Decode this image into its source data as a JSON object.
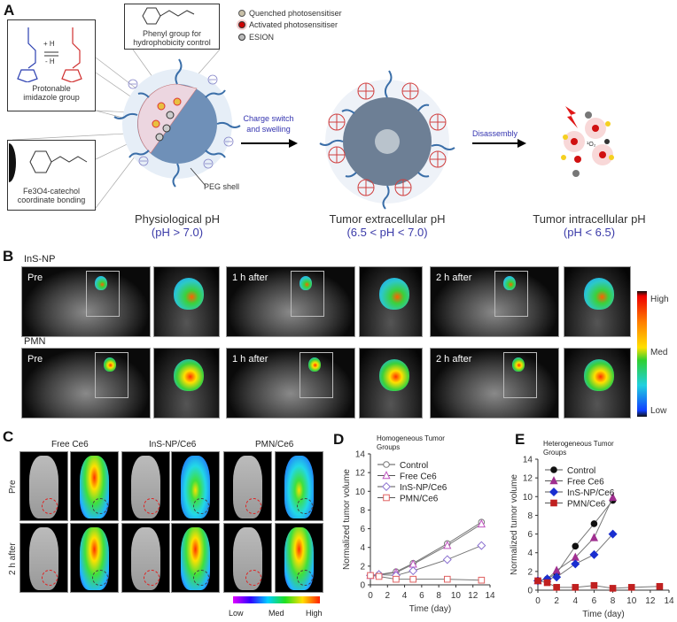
{
  "panel_a": {
    "label": "A",
    "imidazole_box": {
      "plus_h": "+ H",
      "minus_h": "- H",
      "caption": "Protonable imidazole group"
    },
    "phenyl_box": {
      "caption": "Phenyl group for hydrophobicity control"
    },
    "catechol_box": {
      "caption": "Fe3O4-catechol coordinate bonding"
    },
    "legend": [
      "Quenched photosensitiser",
      "Activated photosensitiser",
      "ESION"
    ],
    "peg_label": "PEG shell",
    "arrow1_label": "Charge switch and swelling",
    "arrow2_label": "Disassembly",
    "stages": [
      {
        "title": "Physiological pH",
        "ph": "(pH > 7.0)"
      },
      {
        "title": "Tumor extracellular pH",
        "ph": "(6.5 < pH < 7.0)"
      },
      {
        "title": "Tumor intracellular pH",
        "ph": "(pH < 6.5)"
      }
    ],
    "singlet_oxygen": "¹O₂"
  },
  "panel_b": {
    "label": "B",
    "rows": [
      {
        "name": "InS-NP",
        "timepoints": [
          "Pre",
          "1 h after",
          "2 h after"
        ]
      },
      {
        "name": "PMN",
        "timepoints": [
          "Pre",
          "1 h after",
          "2 h after"
        ]
      }
    ],
    "colorbar": {
      "high": "High",
      "med": "Med",
      "low": "Low"
    }
  },
  "panel_c": {
    "label": "C",
    "columns": [
      "Free Ce6",
      "InS-NP/Ce6",
      "PMN/Ce6"
    ],
    "rows": [
      "Pre",
      "2 h after"
    ],
    "colorbar": {
      "low": "Low",
      "med": "Med",
      "high": "High"
    }
  },
  "chart_data": [
    {
      "label": "D",
      "type": "line",
      "title": "Homogeneous Tumor Groups",
      "xlabel": "Time (day)",
      "ylabel": "Normalized tumor volume",
      "xlim": [
        0,
        14
      ],
      "ylim": [
        0,
        14
      ],
      "xticks": [
        0,
        2,
        4,
        6,
        8,
        10,
        12,
        14
      ],
      "yticks": [
        0,
        2,
        4,
        6,
        8,
        10,
        12,
        14
      ],
      "legend": "top-left",
      "series": [
        {
          "name": "Control",
          "marker": "circle-open",
          "color": "#777777",
          "x": [
            0,
            1,
            3,
            5,
            9,
            13
          ],
          "y": [
            1.0,
            1.1,
            1.4,
            2.3,
            4.4,
            6.7
          ]
        },
        {
          "name": "Free Ce6",
          "marker": "triangle-open",
          "color": "#c050c0",
          "x": [
            0,
            1,
            3,
            5,
            9,
            13
          ],
          "y": [
            1.0,
            1.1,
            1.3,
            2.2,
            4.2,
            6.5
          ]
        },
        {
          "name": "InS-NP/Ce6",
          "marker": "diamond-open",
          "color": "#8a70d0",
          "x": [
            0,
            1,
            3,
            5,
            9,
            13
          ],
          "y": [
            1.0,
            1.1,
            1.0,
            1.5,
            2.7,
            4.2
          ]
        },
        {
          "name": "PMN/Ce6",
          "marker": "square-open",
          "color": "#e06060",
          "x": [
            0,
            1,
            3,
            5,
            9,
            13
          ],
          "y": [
            1.0,
            0.9,
            0.6,
            0.6,
            0.6,
            0.5
          ]
        }
      ]
    },
    {
      "label": "E",
      "type": "line",
      "title": "Heterogeneous Tumor Groups",
      "xlabel": "Time (day)",
      "ylabel": "Normalized tumor volume",
      "xlim": [
        0,
        14
      ],
      "ylim": [
        0,
        14
      ],
      "xticks": [
        0,
        2,
        4,
        6,
        8,
        10,
        12,
        14
      ],
      "yticks": [
        0,
        2,
        4,
        6,
        8,
        10,
        12,
        14
      ],
      "legend": "top-left",
      "series": [
        {
          "name": "Control",
          "marker": "circle",
          "color": "#111111",
          "x": [
            0,
            1,
            2,
            4,
            6,
            8
          ],
          "y": [
            1.0,
            1.2,
            1.8,
            4.7,
            7.1,
            9.6
          ]
        },
        {
          "name": "Free Ce6",
          "marker": "triangle",
          "color": "#a03090",
          "x": [
            0,
            1,
            2,
            4,
            6,
            8
          ],
          "y": [
            1.0,
            1.2,
            2.1,
            3.5,
            5.6,
            9.9
          ]
        },
        {
          "name": "InS-NP/Ce6",
          "marker": "diamond",
          "color": "#1a2fd0",
          "x": [
            0,
            1,
            2,
            4,
            6,
            8
          ],
          "y": [
            1.0,
            1.2,
            1.4,
            2.8,
            3.8,
            6.0
          ]
        },
        {
          "name": "PMN/Ce6",
          "marker": "square",
          "color": "#c02020",
          "x": [
            0,
            1,
            2,
            4,
            6,
            8,
            10,
            13
          ],
          "y": [
            1.0,
            0.8,
            0.3,
            0.3,
            0.5,
            0.2,
            0.3,
            0.4
          ]
        }
      ]
    }
  ]
}
